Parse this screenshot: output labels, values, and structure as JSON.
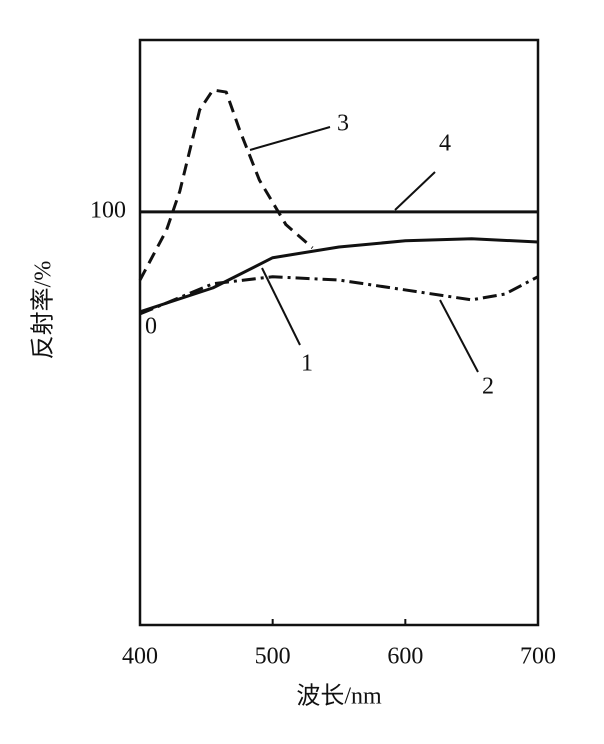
{
  "chart_data": {
    "type": "line",
    "xlabel": "波长/nm",
    "ylabel": "反射率/%",
    "annotations": [
      "0"
    ],
    "x": [
      400,
      420,
      430,
      445,
      455,
      465,
      475,
      490,
      500,
      510,
      530,
      550,
      600,
      650,
      675,
      700
    ],
    "series": [
      {
        "name": "1",
        "color": "#111111",
        "style": "solid",
        "values": [
          75.8,
          null,
          null,
          null,
          81.6,
          null,
          null,
          null,
          88.9,
          null,
          null,
          91.5,
          93.0,
          93.5,
          null,
          92.7
        ]
      },
      {
        "name": "2",
        "color": "#111111",
        "style": "dashdot",
        "values": [
          75.3,
          null,
          null,
          null,
          82.6,
          null,
          null,
          null,
          84.3,
          null,
          null,
          83.5,
          81.1,
          78.7,
          80.1,
          84.3
        ]
      },
      {
        "name": "3",
        "color": "#111111",
        "style": "dashed",
        "values": [
          83.5,
          95.6,
          105,
          124.7,
          129.5,
          129,
          119.9,
          107.7,
          null,
          96.9,
          91.3,
          null,
          null,
          null,
          null,
          null
        ]
      },
      {
        "name": "4",
        "color": "#111111",
        "style": "solid",
        "values": [
          100,
          null,
          null,
          null,
          null,
          null,
          null,
          null,
          null,
          null,
          null,
          null,
          null,
          null,
          null,
          100
        ]
      }
    ],
    "xlim": [
      400,
      700
    ],
    "xticks": [
      400,
      500,
      600,
      700
    ],
    "ylim": [
      0,
      141.6
    ],
    "yticks": [
      100
    ],
    "grid": false
  }
}
